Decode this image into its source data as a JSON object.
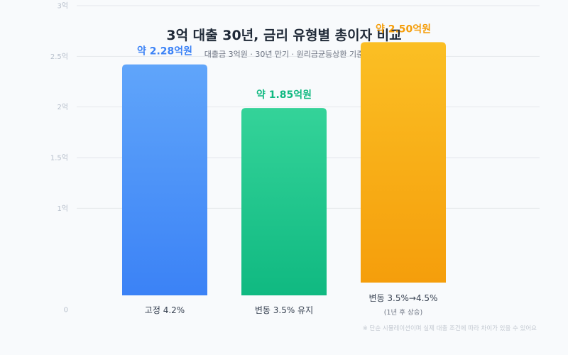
{
  "chart_data": {
    "type": "bar",
    "title": "3억 대출 30년, 금리 유형별 총이자 비교",
    "subtitle": "대출금 3억원 · 30년 만기 · 원리금균등상환 기준",
    "y_ticks": [
      {
        "value": 0,
        "label": "0"
      },
      {
        "value": 1,
        "label": "1억"
      },
      {
        "value": 1.5,
        "label": "1.5억"
      },
      {
        "value": 2,
        "label": "2억"
      },
      {
        "value": 2.5,
        "label": "2.5억"
      },
      {
        "value": 3,
        "label": "3억"
      }
    ],
    "ylim": [
      0,
      3
    ],
    "grid": true,
    "categories": [
      {
        "label": "고정 4.2%",
        "sub_label": "",
        "value": 2.28,
        "value_label": "약 2.28억원",
        "color_top": "#60a5fa",
        "color_bottom": "#3b82f6",
        "label_color": "#3b82f6"
      },
      {
        "label": "변동 3.5% 유지",
        "sub_label": "",
        "value": 1.85,
        "value_label": "약 1.85억원",
        "color_top": "#34d399",
        "color_bottom": "#10b981",
        "label_color": "#10b981"
      },
      {
        "label": "변동 3.5%→4.5%",
        "sub_label": "(1년 후 상승)",
        "value": 2.5,
        "value_label": "약 2.50억원",
        "color_top": "#fbbf24",
        "color_bottom": "#f59e0b",
        "label_color": "#f59e0b"
      }
    ],
    "footnote": "※ 단순 시뮬레이션이며 실제 대출 조건에 따라 차이가 있을 수 있어요"
  }
}
